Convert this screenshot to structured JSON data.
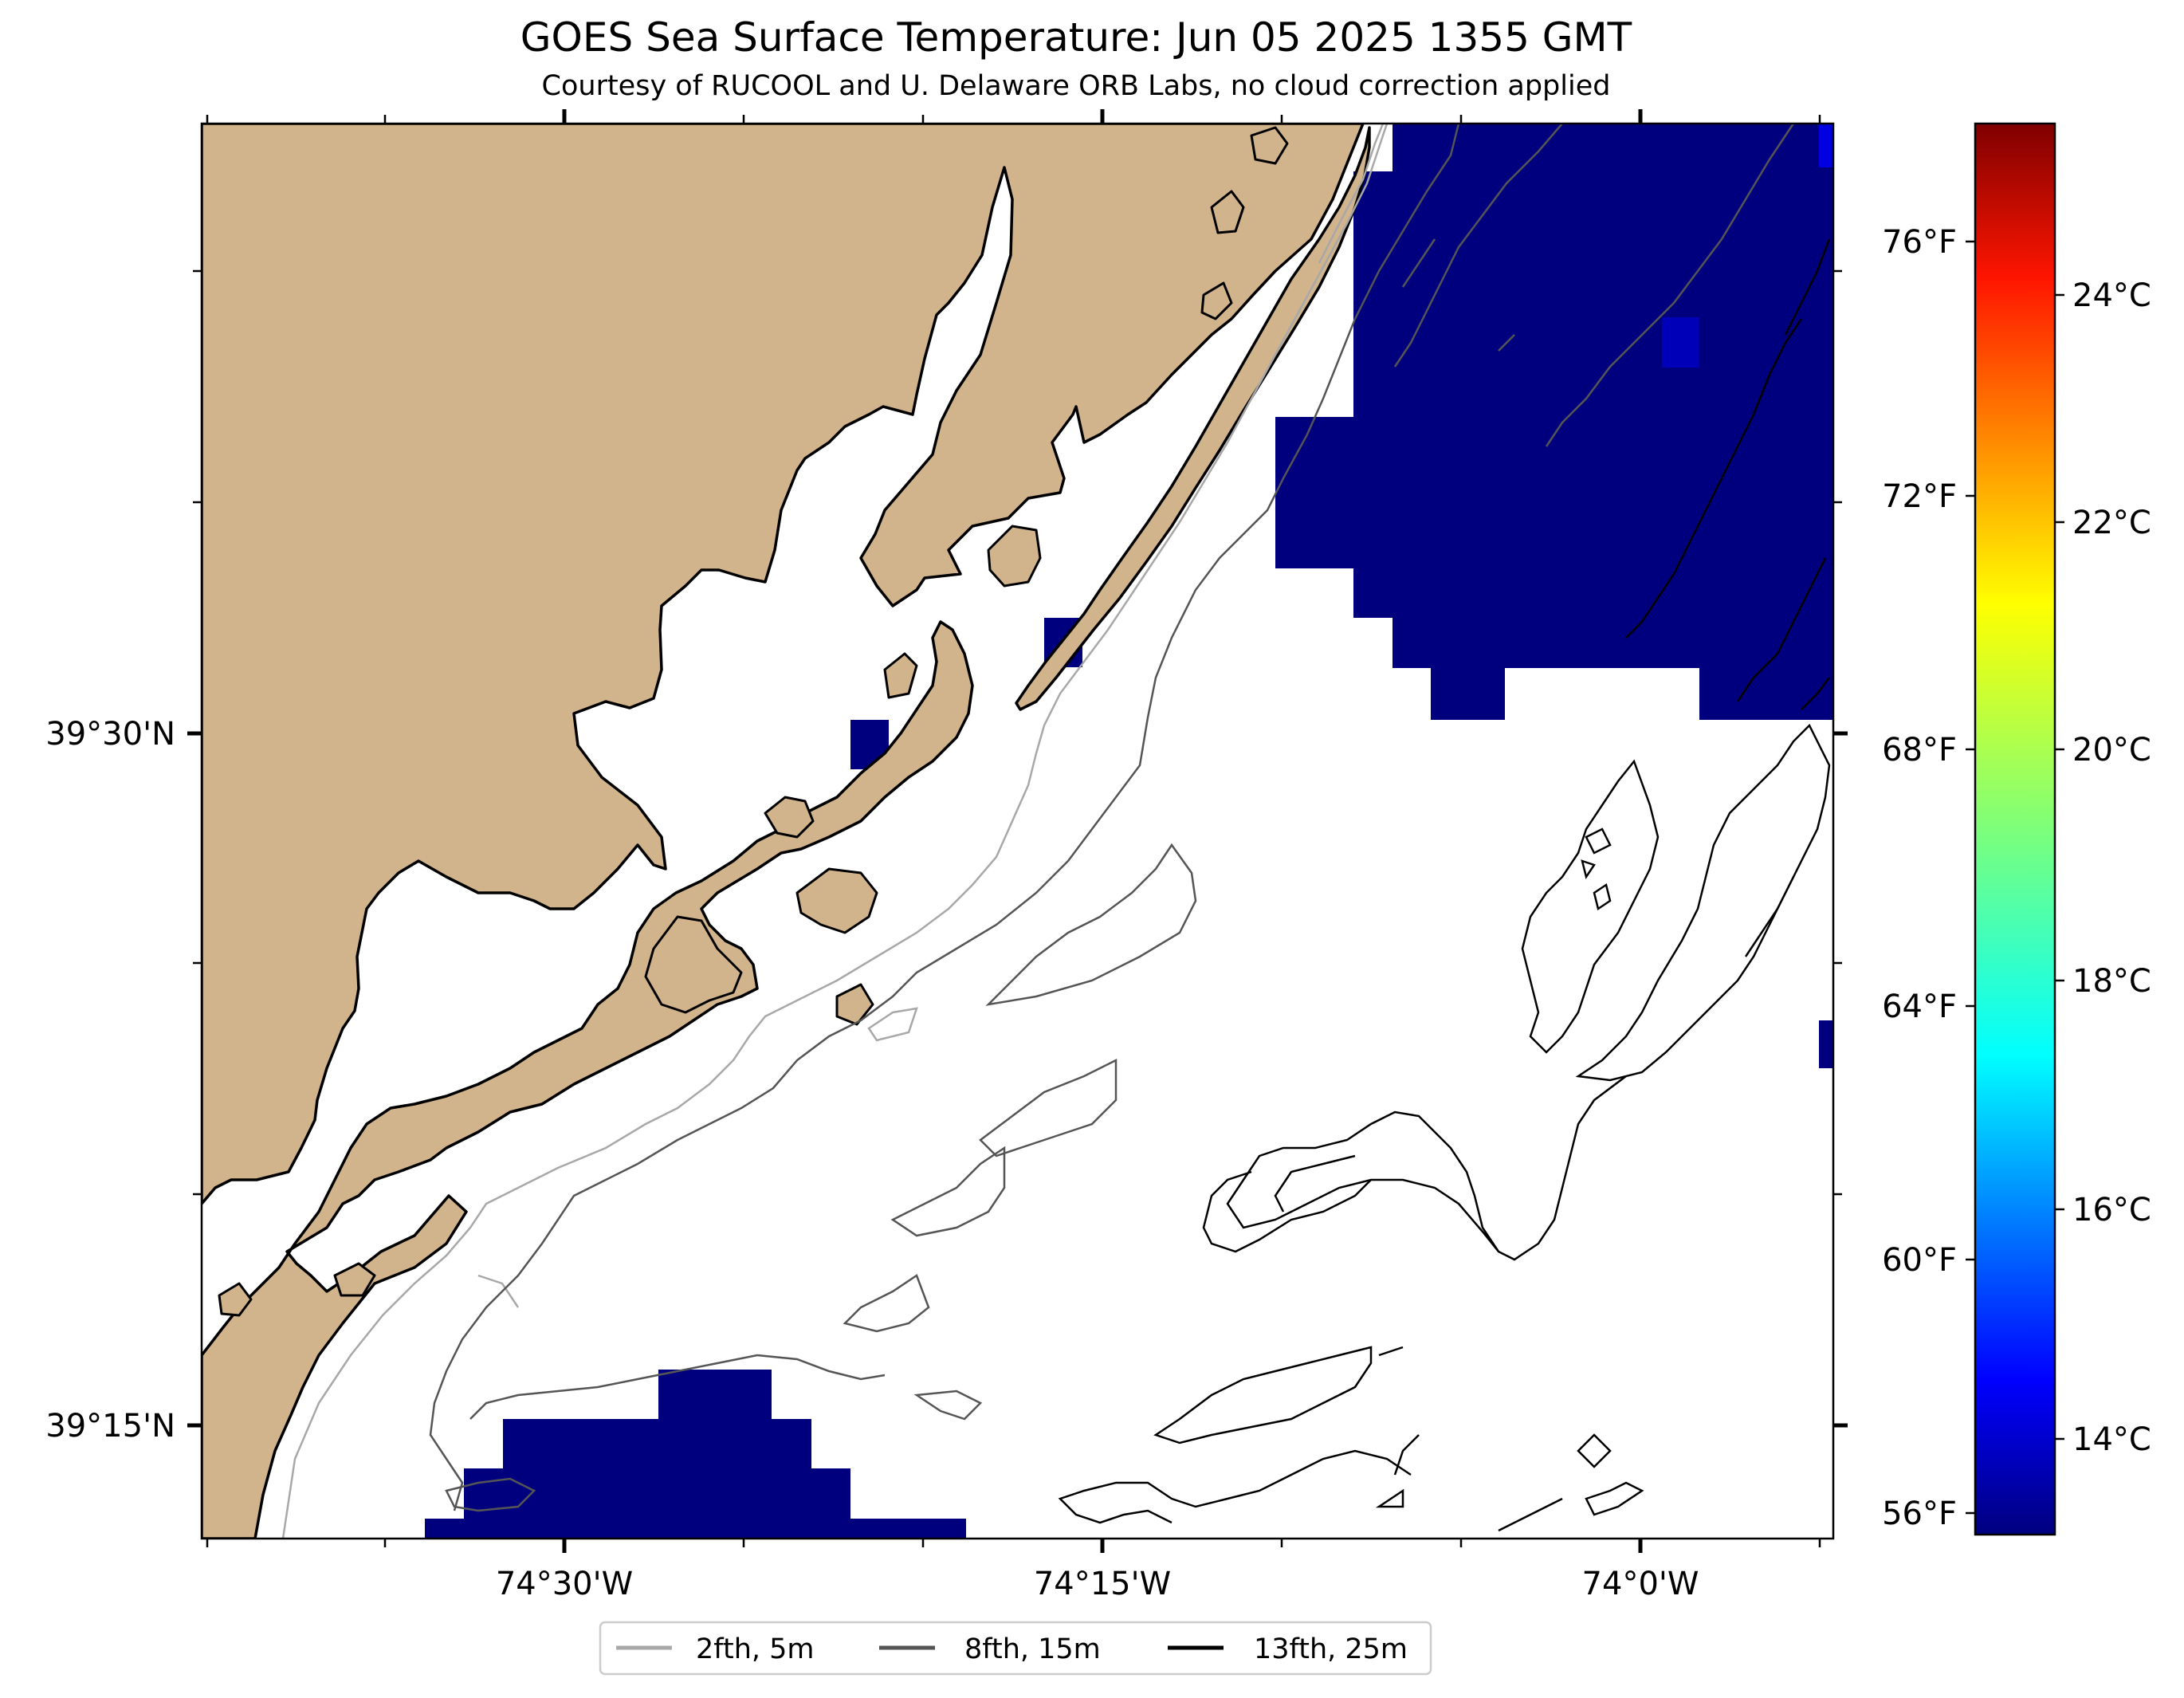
{
  "header": {
    "title": "GOES Sea Surface Temperature: Jun 05 2025 1355 GMT",
    "subtitle": "Courtesy of RUCOOL and U. Delaware ORB Labs, no cloud correction applied"
  },
  "map": {
    "x_ticks": [
      "74°30'W",
      "74°15'W",
      "74°0'W"
    ],
    "y_ticks": [
      "39°30'N",
      "39°15'N"
    ],
    "colors": {
      "land": "#d2b48c",
      "water_nodata": "#ffffff",
      "sst_cold": "#00007f",
      "sst_mid": "#0000b8",
      "contour_2fth": "#a8a8a8",
      "contour_8fth": "#555555",
      "contour_13fth": "#000000"
    }
  },
  "legend": {
    "entries": [
      {
        "label": "2fth, 5m",
        "color": "#a8a8a8"
      },
      {
        "label": "8fth, 15m",
        "color": "#555555"
      },
      {
        "label": "13fth, 25m",
        "color": "#000000"
      }
    ]
  },
  "colorbar": {
    "fahrenheit_ticks": [
      "76°F",
      "72°F",
      "68°F",
      "64°F",
      "60°F",
      "56°F"
    ],
    "celsius_ticks": [
      "24°C",
      "22°C",
      "20°C",
      "18°C",
      "16°C",
      "14°C"
    ],
    "colormap": "jet"
  }
}
